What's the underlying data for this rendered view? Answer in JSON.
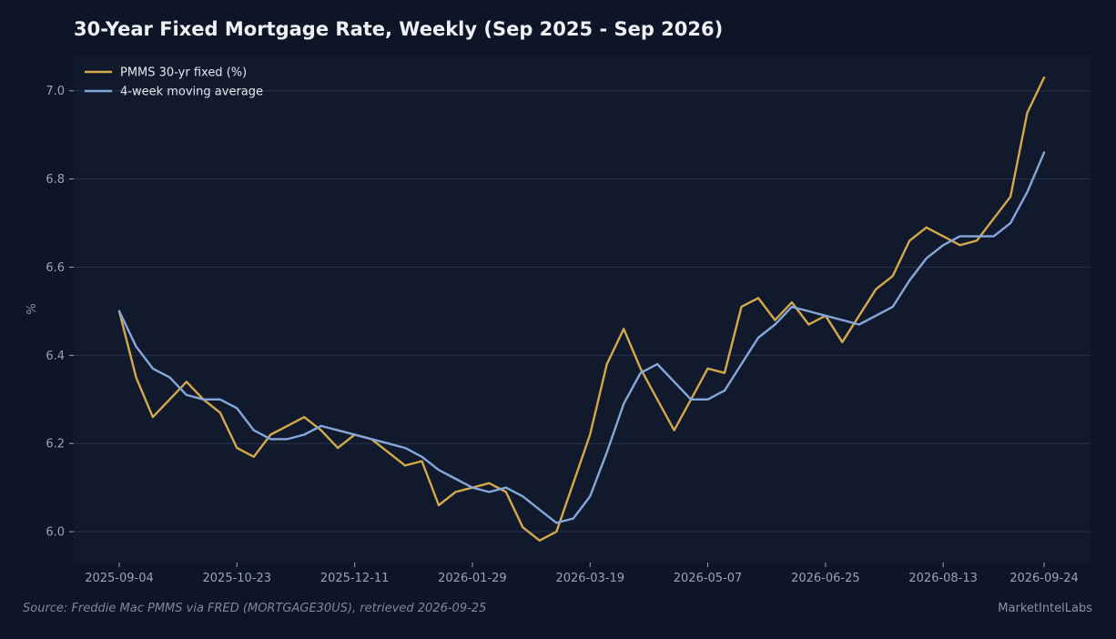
{
  "title": "30-Year Fixed Mortgage Rate, Weekly (Sep 2025 - Sep 2026)",
  "source_note": "Source: Freddie Mac PMMS via FRED (MORTGAGE30US), retrieved 2026-09-25",
  "brand": "MarketIntelLabs",
  "colors": {
    "background": "#0e1526",
    "plot_background": "#111a2d",
    "grid": "#253149",
    "pmms": "#d4a84b",
    "moving_average": "#86a7db"
  },
  "chart_data": {
    "type": "line",
    "title": "30-Year Fixed Mortgage Rate, Weekly (Sep 2025 - Sep 2026)",
    "xlabel": "",
    "ylabel": "%",
    "ylim": [
      5.93,
      7.08
    ],
    "yticks": [
      6.0,
      6.2,
      6.4,
      6.6,
      6.8,
      7.0
    ],
    "ytick_labels": [
      "6.0",
      "6.2",
      "6.4",
      "6.6",
      "6.8",
      "7.0"
    ],
    "xticks": [
      "2025-09-04",
      "2025-10-23",
      "2025-12-11",
      "2026-01-29",
      "2026-03-19",
      "2026-05-07",
      "2026-06-25",
      "2026-08-13",
      "2026-09-24"
    ],
    "grid": "horizontal",
    "legend_position": "top-left",
    "x": [
      "2025-09-04",
      "2025-09-11",
      "2025-09-18",
      "2025-09-25",
      "2025-10-02",
      "2025-10-09",
      "2025-10-16",
      "2025-10-23",
      "2025-10-30",
      "2025-11-06",
      "2025-11-13",
      "2025-11-20",
      "2025-11-27",
      "2025-12-04",
      "2025-12-11",
      "2025-12-18",
      "2025-12-25",
      "2026-01-01",
      "2026-01-08",
      "2026-01-15",
      "2026-01-22",
      "2026-01-29",
      "2026-02-05",
      "2026-02-12",
      "2026-02-19",
      "2026-02-26",
      "2026-03-05",
      "2026-03-12",
      "2026-03-19",
      "2026-03-26",
      "2026-04-02",
      "2026-04-09",
      "2026-04-16",
      "2026-04-23",
      "2026-04-30",
      "2026-05-07",
      "2026-05-14",
      "2026-05-21",
      "2026-05-28",
      "2026-06-04",
      "2026-06-11",
      "2026-06-18",
      "2026-06-25",
      "2026-07-02",
      "2026-07-09",
      "2026-07-16",
      "2026-07-23",
      "2026-07-30",
      "2026-08-06",
      "2026-08-13",
      "2026-08-20",
      "2026-08-27",
      "2026-09-03",
      "2026-09-10",
      "2026-09-17",
      "2026-09-24"
    ],
    "series": [
      {
        "name": "PMMS 30-yr fixed (%)",
        "color": "#d4a84b",
        "values": [
          6.5,
          6.35,
          6.26,
          6.3,
          6.34,
          6.3,
          6.27,
          6.19,
          6.17,
          6.22,
          6.24,
          6.26,
          6.23,
          6.19,
          6.22,
          6.21,
          6.18,
          6.15,
          6.16,
          6.06,
          6.09,
          6.1,
          6.11,
          6.09,
          6.01,
          5.98,
          6.0,
          6.11,
          6.22,
          6.38,
          6.46,
          6.37,
          6.3,
          6.23,
          6.3,
          6.37,
          6.36,
          6.51,
          6.53,
          6.48,
          6.52,
          6.47,
          6.49,
          6.43,
          6.49,
          6.55,
          6.58,
          6.66,
          6.69,
          6.67,
          6.65,
          6.66,
          6.71,
          6.76,
          6.95,
          7.03
        ]
      },
      {
        "name": "4-week moving average",
        "color": "#86a7db",
        "values": [
          6.5,
          6.42,
          6.37,
          6.35,
          6.31,
          6.3,
          6.3,
          6.28,
          6.23,
          6.21,
          6.21,
          6.22,
          6.24,
          6.23,
          6.22,
          6.21,
          6.2,
          6.19,
          6.17,
          6.14,
          6.12,
          6.1,
          6.09,
          6.1,
          6.08,
          6.05,
          6.02,
          6.03,
          6.08,
          6.18,
          6.29,
          6.36,
          6.38,
          6.34,
          6.3,
          6.3,
          6.32,
          6.38,
          6.44,
          6.47,
          6.51,
          6.5,
          6.49,
          6.48,
          6.47,
          6.49,
          6.51,
          6.57,
          6.62,
          6.65,
          6.67,
          6.67,
          6.67,
          6.7,
          6.77,
          6.86
        ]
      }
    ]
  }
}
